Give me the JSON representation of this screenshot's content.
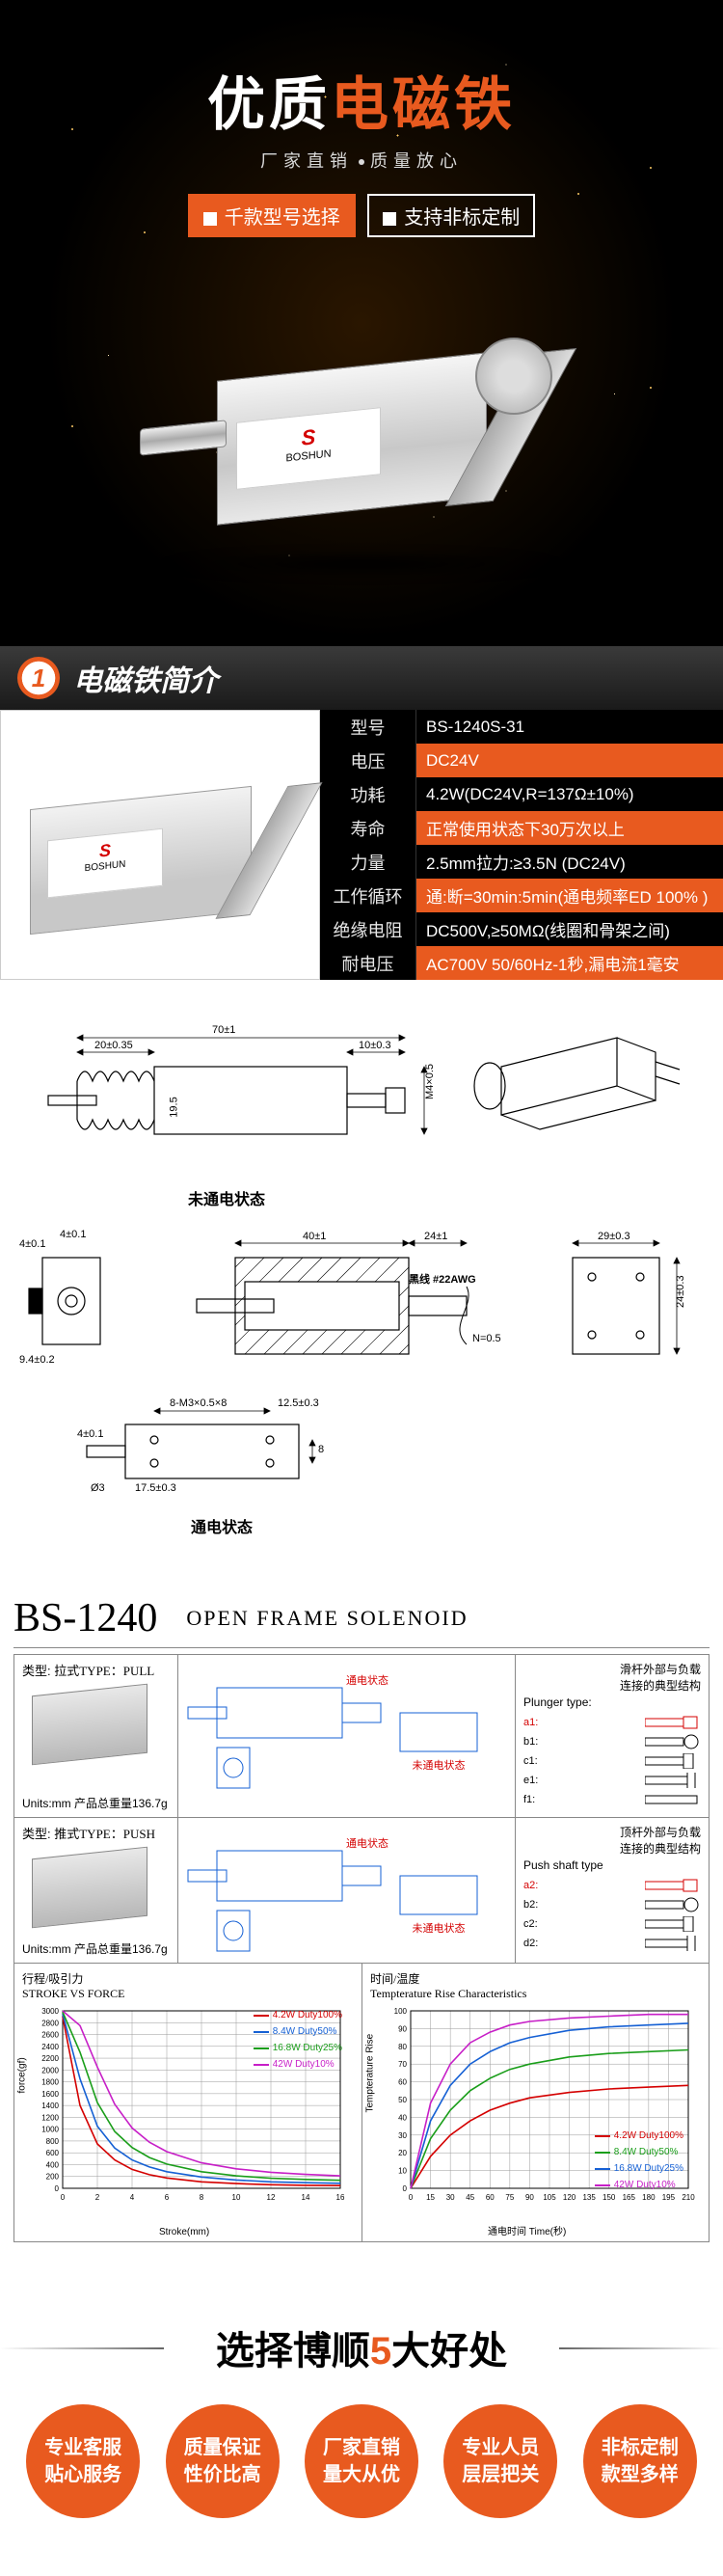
{
  "hero": {
    "title_part1": "优质",
    "title_part2": "电磁铁",
    "subtitle_a": "厂家直销",
    "subtitle_b": "质量放心",
    "tag1": "千款型号选择",
    "tag2": "支持非标定制",
    "brand_logo_letter": "S",
    "brand_logo_name": "BOSHUN",
    "title_fontsize": 60,
    "accent_color": "#e85a1f",
    "hero_bg": "#000000"
  },
  "section1": {
    "number": "1",
    "title": "电磁铁简介",
    "header_bg": "#2a2a2a"
  },
  "spec": {
    "label_row_bg": "#000000",
    "value_orange_bg": "#e85a1f",
    "rows": [
      {
        "k": "型号",
        "v": "BS-1240S-31",
        "orange": false
      },
      {
        "k": "电压",
        "v": "DC24V",
        "orange": true
      },
      {
        "k": "功耗",
        "v": "4.2W(DC24V,R=137Ω±10%)",
        "orange": false
      },
      {
        "k": "寿命",
        "v": "正常使用状态下30万次以上",
        "orange": true
      },
      {
        "k": "力量",
        "v": "2.5mm拉力:≥3.5N (DC24V)",
        "orange": false
      },
      {
        "k": "工作循环",
        "v": "通:断=30min:5min(通电频率ED 100% )",
        "orange": true
      },
      {
        "k": "绝缘电阻",
        "v": "DC500V,≥50MΩ(线圈和骨架之间)",
        "orange": false
      },
      {
        "k": "耐电压",
        "v": "AC700V 50/60Hz-1秒,漏电流1毫安",
        "orange": true
      }
    ],
    "img_logo_letter": "S",
    "img_logo_name": "BOSHUN"
  },
  "drawing": {
    "top_caption": "未通电状态",
    "bottom_caption": "通电状态",
    "wire_note": "黑线 #22AWG",
    "length_note": "N=0.5",
    "dims": {
      "overall_l": "70±1",
      "mount_l": "20±0.35",
      "spring_d": "19.5",
      "tail_l": "10±0.3",
      "body_l": "40±1",
      "ext_l": "24±1",
      "body_w": "29±0.3",
      "body_h2": "24±0.3",
      "hole_pitch_w": "12.5±0.3",
      "hole_pitch_l": "8",
      "hole_spec": "8-M3×0.5×8",
      "plunger_d": "Ø3",
      "tip_l": "4±0.1",
      "side_l": "17.5±0.3",
      "side_h": "9.4±0.2",
      "hole_d": "4±0.1",
      "slot_h": "M4×0.5"
    }
  },
  "datasheet": {
    "model": "BS-1240",
    "name": "OPEN FRAME SOLENOID",
    "pull": {
      "type_cn": "类型: 拉式",
      "type_en": "TYPE：PULL",
      "caption_on": "通电状态",
      "caption_off": "未通电状态",
      "units": "Units:mm  产品总重量136.7g",
      "meta_title_cn": "滑杆外部与负载\n连接的典型结构",
      "meta_title_en": "Plunger type:",
      "plungers": [
        {
          "tag": "a1:",
          "color": "#d40000"
        },
        {
          "tag": "b1:",
          "color": "#000000"
        },
        {
          "tag": "c1:",
          "color": "#000000"
        },
        {
          "tag": "e1:",
          "color": "#000000"
        },
        {
          "tag": "f1:",
          "color": "#000000"
        }
      ]
    },
    "push": {
      "type_cn": "类型: 推式",
      "type_en": "TYPE：PUSH",
      "caption_on": "通电状态",
      "caption_off": "未通电状态",
      "units": "Units:mm  产品总重量136.7g",
      "meta_title_cn": "顶杆外部与负载\n连接的典型结构",
      "meta_title_en": "Push shaft type",
      "plungers": [
        {
          "tag": "a2:",
          "color": "#d40000"
        },
        {
          "tag": "b2:",
          "color": "#000000"
        },
        {
          "tag": "c2:",
          "color": "#000000"
        },
        {
          "tag": "d2:",
          "color": "#000000"
        }
      ]
    },
    "chart1": {
      "type": "line",
      "title_cn": "行程/吸引力",
      "title_en": "STROKE VS FORCE",
      "xlabel": "Stroke(mm)",
      "ylabel": "force(gf)",
      "xlim": [
        0,
        16
      ],
      "ylim": [
        0,
        3000
      ],
      "xticks": [
        0,
        2,
        4,
        6,
        8,
        10,
        12,
        14,
        16
      ],
      "yticks": [
        0,
        200,
        400,
        600,
        800,
        1000,
        1200,
        1400,
        1600,
        1800,
        2000,
        2200,
        2400,
        2600,
        2800,
        3000
      ],
      "grid_color": "#999999",
      "bg": "#ffffff",
      "series": [
        {
          "label": "4.2W Duty100%",
          "color": "#d40000",
          "data": [
            [
              0,
              2900
            ],
            [
              1,
              1400
            ],
            [
              2,
              750
            ],
            [
              3,
              480
            ],
            [
              4,
              320
            ],
            [
              5,
              230
            ],
            [
              6,
              175
            ],
            [
              8,
              110
            ],
            [
              10,
              80
            ],
            [
              12,
              60
            ],
            [
              14,
              50
            ],
            [
              16,
              45
            ]
          ]
        },
        {
          "label": "8.4W Duty50%",
          "color": "#1560d4",
          "data": [
            [
              0,
              2950
            ],
            [
              1,
              1850
            ],
            [
              2,
              1050
            ],
            [
              3,
              680
            ],
            [
              4,
              480
            ],
            [
              5,
              360
            ],
            [
              6,
              280
            ],
            [
              8,
              190
            ],
            [
              10,
              140
            ],
            [
              12,
              110
            ],
            [
              14,
              95
            ],
            [
              16,
              85
            ]
          ]
        },
        {
          "label": "16.8W Duty25%",
          "color": "#1a9e1a",
          "data": [
            [
              0,
              2980
            ],
            [
              1,
              2300
            ],
            [
              2,
              1450
            ],
            [
              3,
              960
            ],
            [
              4,
              690
            ],
            [
              5,
              520
            ],
            [
              6,
              410
            ],
            [
              8,
              280
            ],
            [
              10,
              210
            ],
            [
              12,
              170
            ],
            [
              14,
              150
            ],
            [
              16,
              135
            ]
          ]
        },
        {
          "label": "42W Duty10%",
          "color": "#c71fc7",
          "data": [
            [
              0,
              3000
            ],
            [
              1,
              2750
            ],
            [
              2,
              2050
            ],
            [
              3,
              1420
            ],
            [
              4,
              1020
            ],
            [
              5,
              780
            ],
            [
              6,
              620
            ],
            [
              8,
              430
            ],
            [
              10,
              330
            ],
            [
              12,
              270
            ],
            [
              14,
              235
            ],
            [
              16,
              210
            ]
          ]
        }
      ],
      "legend_pos": "inside-top-right"
    },
    "chart2": {
      "type": "line",
      "title_cn": "时间/温度",
      "title_en": "Tempterature Rise Characteristics",
      "xlabel": "通电时间 Time(秒)",
      "ylabel": "Tempterature Rise",
      "xlim": [
        0,
        210
      ],
      "ylim": [
        0,
        100
      ],
      "xticks": [
        0,
        15,
        30,
        45,
        60,
        75,
        90,
        105,
        120,
        135,
        150,
        165,
        180,
        195,
        210
      ],
      "yticks": [
        0,
        10,
        20,
        30,
        40,
        50,
        60,
        70,
        80,
        90,
        100
      ],
      "grid_color": "#999999",
      "bg": "#ffffff",
      "series": [
        {
          "label": "4.2W Duty100%",
          "color": "#d40000",
          "data": [
            [
              0,
              0
            ],
            [
              15,
              18
            ],
            [
              30,
              30
            ],
            [
              45,
              38
            ],
            [
              60,
              44
            ],
            [
              75,
              48
            ],
            [
              90,
              51
            ],
            [
              120,
              54
            ],
            [
              150,
              56
            ],
            [
              180,
              57
            ],
            [
              210,
              58
            ]
          ]
        },
        {
          "label": "8.4W Duty50%",
          "color": "#1a9e1a",
          "data": [
            [
              0,
              0
            ],
            [
              15,
              28
            ],
            [
              30,
              44
            ],
            [
              45,
              55
            ],
            [
              60,
              62
            ],
            [
              75,
              67
            ],
            [
              90,
              70
            ],
            [
              120,
              74
            ],
            [
              150,
              76
            ],
            [
              180,
              77
            ],
            [
              210,
              78
            ]
          ]
        },
        {
          "label": "16.8W Duty25%",
          "color": "#1560d4",
          "data": [
            [
              0,
              0
            ],
            [
              15,
              38
            ],
            [
              30,
              58
            ],
            [
              45,
              70
            ],
            [
              60,
              77
            ],
            [
              75,
              82
            ],
            [
              90,
              85
            ],
            [
              120,
              89
            ],
            [
              150,
              91
            ],
            [
              180,
              92
            ],
            [
              210,
              93
            ]
          ]
        },
        {
          "label": "42W Duty10%",
          "color": "#c71fc7",
          "data": [
            [
              0,
              0
            ],
            [
              15,
              48
            ],
            [
              30,
              70
            ],
            [
              45,
              82
            ],
            [
              60,
              88
            ],
            [
              75,
              92
            ],
            [
              90,
              94
            ],
            [
              120,
              96
            ],
            [
              150,
              97
            ],
            [
              180,
              98
            ],
            [
              210,
              98
            ]
          ]
        }
      ],
      "legend_pos": "inside-bottom-right"
    }
  },
  "benefits": {
    "title_pre": "选择博顺",
    "title_num": "5",
    "title_post": "大好处",
    "items": [
      {
        "l1": "专业客服",
        "l2": "贴心服务"
      },
      {
        "l1": "质量保证",
        "l2": "性价比高"
      },
      {
        "l1": "厂家直销",
        "l2": "量大从优"
      },
      {
        "l1": "专业人员",
        "l2": "层层把关"
      },
      {
        "l1": "非标定制",
        "l2": "款型多样"
      }
    ],
    "circle_bg": "#e85a1f"
  }
}
